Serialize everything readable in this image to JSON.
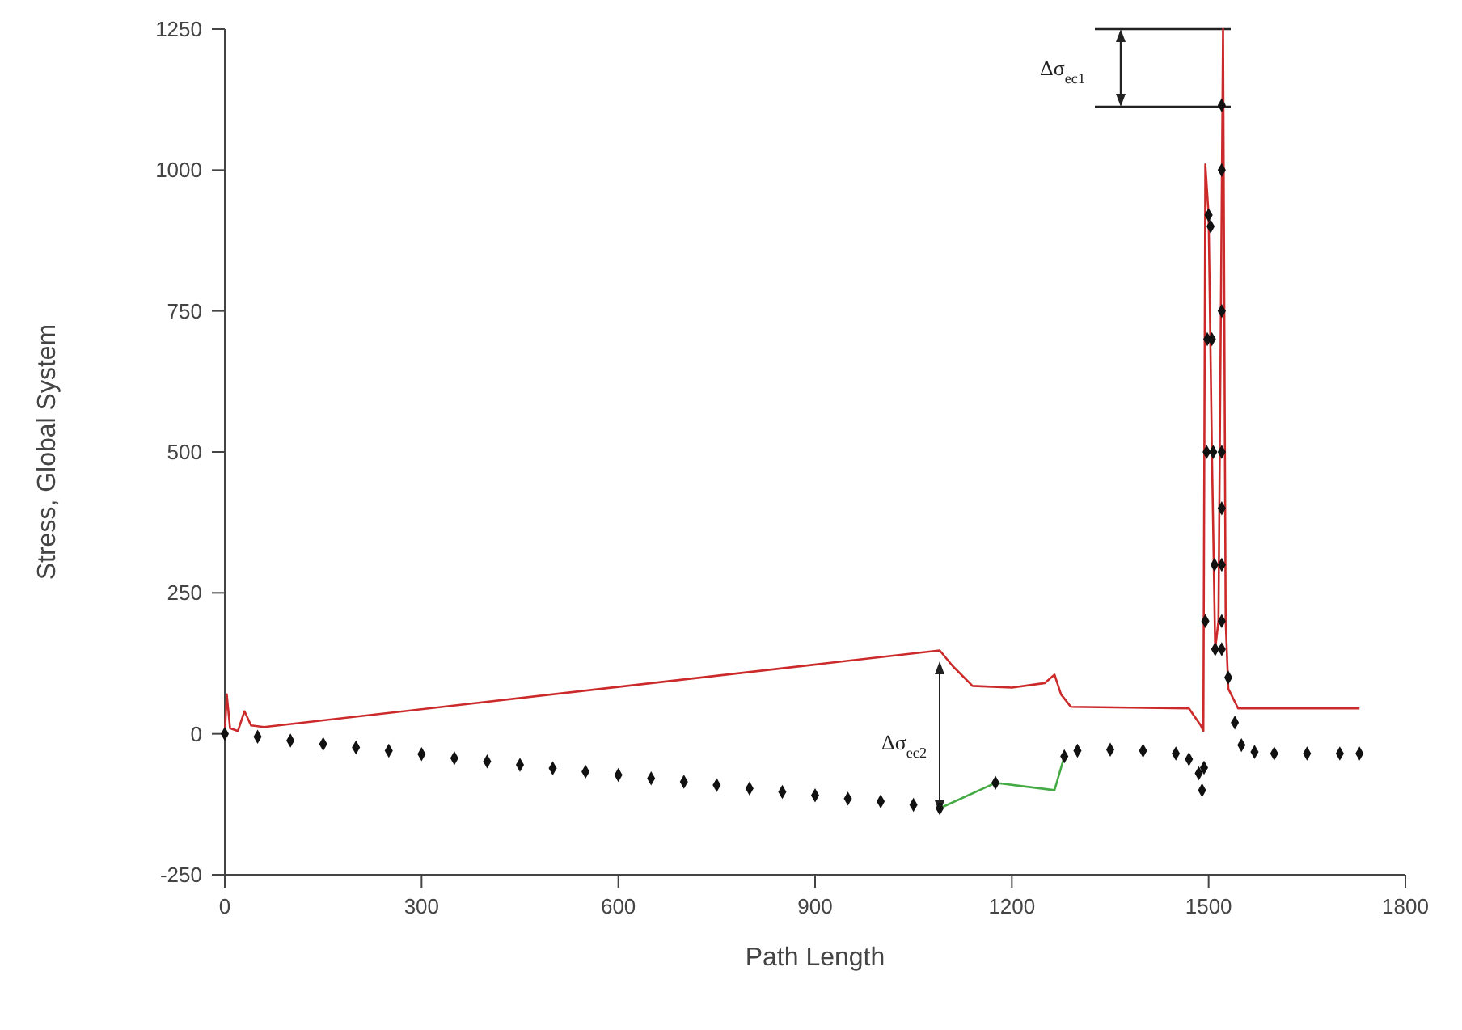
{
  "chart_data": {
    "type": "line",
    "xlabel": "Path Length",
    "ylabel": "Stress, Global System",
    "xlim": [
      0,
      1800
    ],
    "xticks": [
      0,
      300,
      600,
      900,
      1200,
      1500,
      1800
    ],
    "ylim": [
      -250,
      1250
    ],
    "yticks": [
      -250,
      0,
      250,
      500,
      750,
      1000,
      1250
    ],
    "grid": false,
    "series": [
      {
        "color": "#cc2a2a",
        "marker": "none",
        "x": [
          0,
          3,
          8,
          20,
          30,
          40,
          60,
          1090,
          1110,
          1140,
          1200,
          1250,
          1265,
          1275,
          1290,
          1470,
          1488,
          1492,
          1495,
          1500,
          1505,
          1510,
          1515,
          1522,
          1526,
          1530,
          1545,
          1730
        ],
        "values": [
          0,
          70,
          10,
          5,
          40,
          15,
          12,
          148,
          120,
          85,
          82,
          90,
          105,
          70,
          48,
          45,
          15,
          5,
          1010,
          920,
          500,
          150,
          200,
          1250,
          200,
          80,
          45,
          45
        ]
      },
      {
        "color": "#44aa44",
        "marker": "none",
        "x": [
          1090,
          1175,
          1265,
          1280
        ],
        "values": [
          -132,
          -87,
          -100,
          -40
        ]
      },
      {
        "type": "scatter",
        "color": "#111111",
        "marker": "diamond",
        "x": [
          0,
          50,
          100,
          150,
          200,
          250,
          300,
          350,
          400,
          450,
          500,
          550,
          600,
          650,
          700,
          750,
          800,
          850,
          900,
          950,
          1000,
          1050,
          1090,
          1175,
          1280,
          1300,
          1350,
          1400,
          1450,
          1470,
          1485,
          1490,
          1493,
          1495,
          1497,
          1498,
          1500,
          1503,
          1505,
          1507,
          1509,
          1510,
          1520,
          1520,
          1520,
          1520,
          1520,
          1520,
          1520,
          1520,
          1530,
          1540,
          1550,
          1570,
          1600,
          1650,
          1700,
          1730
        ],
        "values": [
          0,
          -5,
          -12,
          -18,
          -24,
          -30,
          -36,
          -43,
          -49,
          -55,
          -61,
          -67,
          -73,
          -79,
          -85,
          -91,
          -97,
          -103,
          -109,
          -115,
          -120,
          -126,
          -132,
          -87,
          -40,
          -30,
          -28,
          -30,
          -35,
          -45,
          -70,
          -100,
          -60,
          200,
          500,
          700,
          920,
          900,
          700,
          500,
          300,
          150,
          1115,
          1000,
          750,
          500,
          400,
          300,
          200,
          150,
          100,
          20,
          -20,
          -32,
          -35,
          -35,
          -35,
          -35
        ]
      }
    ],
    "annotations": [
      "Δσ$_{ec1}$",
      "Δσ$_{ec2}$"
    ]
  }
}
